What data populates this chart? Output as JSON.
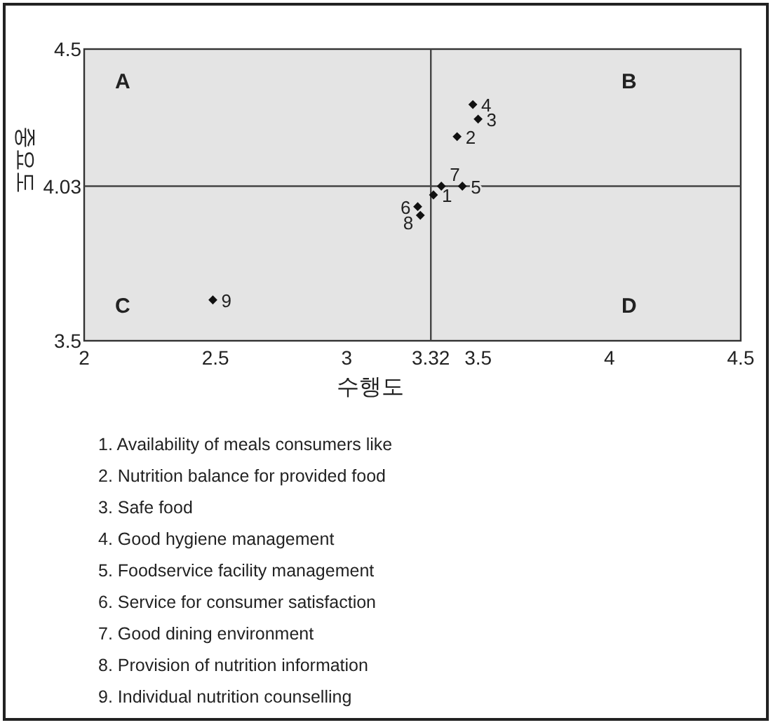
{
  "chart_data": {
    "type": "scatter",
    "xlabel": "수행도",
    "ylabel": "중요도",
    "x": [
      3.33,
      3.42,
      3.5,
      3.48,
      3.44,
      3.27,
      3.36,
      3.28,
      2.49
    ],
    "values": [
      4.0,
      4.2,
      4.26,
      4.31,
      4.03,
      3.96,
      4.03,
      3.93,
      3.64
    ],
    "color": "#111111",
    "marker": "diamond",
    "grid": false,
    "xlim": [
      2,
      4.5
    ],
    "xticks": [
      2,
      2.5,
      3,
      3.32,
      3.5,
      4,
      4.5
    ],
    "ylim": [
      3.5,
      4.5
    ],
    "yticks": [
      3.5,
      4.03,
      4.5
    ],
    "ref_lines": [
      {
        "axis": "x",
        "value": 3.32,
        "color": "#444444"
      },
      {
        "axis": "y",
        "value": 4.03,
        "color": "#444444"
      }
    ],
    "annotations": [
      "A",
      "B",
      "C",
      "D",
      "1. Availability of meals consumers like",
      "2. Nutrition balance for provided food",
      "3. Safe food",
      "4. Good hygiene management",
      "5. Foodservice facility management",
      "6. Service for consumer satisfaction",
      "7. Good dining environment",
      "8. Provision of nutrition information",
      "9. Individual nutrition counselling",
      {
        "text": "1",
        "x": 3.33,
        "y": 4.0
      },
      {
        "text": "2",
        "x": 3.42,
        "y": 4.2
      },
      {
        "text": "3",
        "x": 3.5,
        "y": 4.26
      },
      {
        "text": "4",
        "x": 3.48,
        "y": 4.31
      },
      {
        "text": "5",
        "x": 3.44,
        "y": 4.03
      },
      {
        "text": "6",
        "x": 3.27,
        "y": 3.96
      },
      {
        "text": "7",
        "x": 3.36,
        "y": 4.03
      },
      {
        "text": "8",
        "x": 3.28,
        "y": 3.93
      },
      {
        "text": "9",
        "x": 2.49,
        "y": 3.64
      }
    ]
  }
}
